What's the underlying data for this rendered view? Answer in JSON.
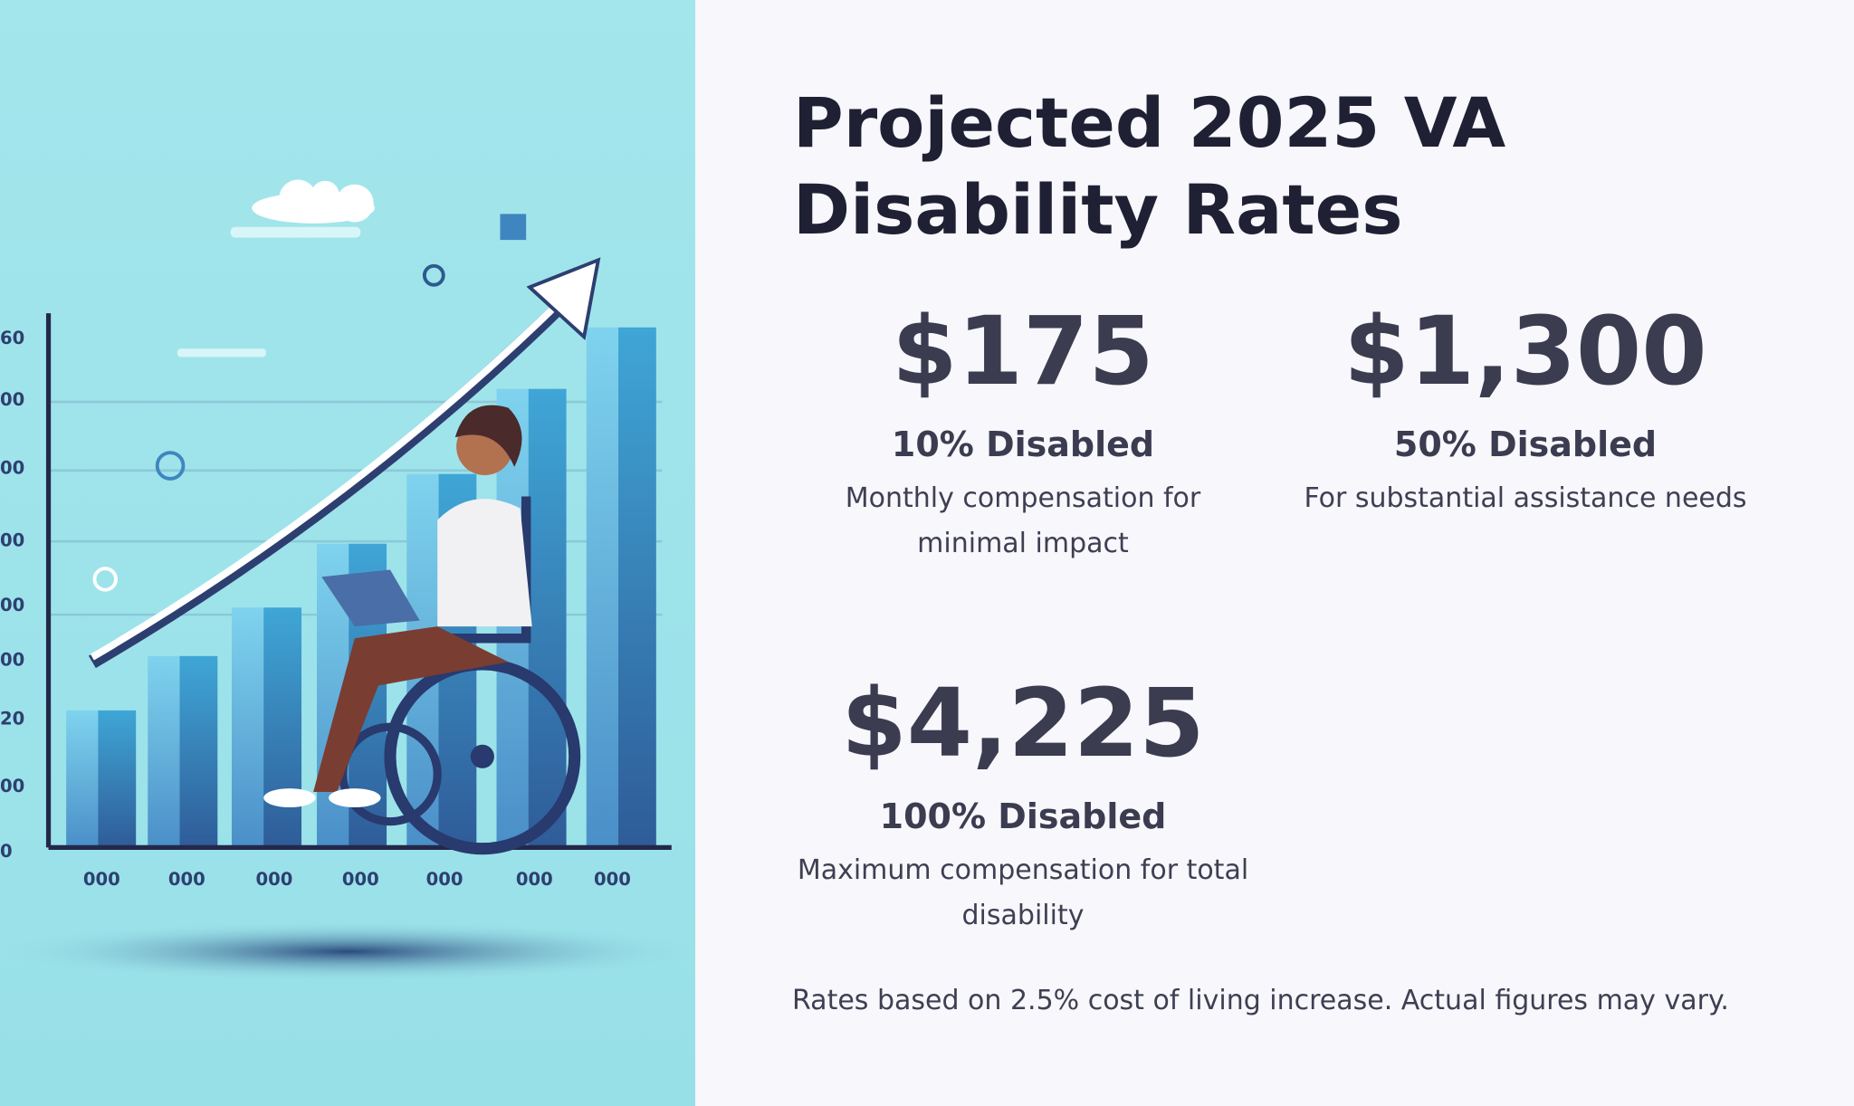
{
  "title": "Projected 2025 VA Disability Rates",
  "stats": [
    {
      "amount": "$175",
      "label": "10% Disabled",
      "description": "Monthly compensation for minimal impact"
    },
    {
      "amount": "$1,300",
      "label": "50% Disabled",
      "description": "For substantial assistance needs"
    },
    {
      "amount": "$4,225",
      "label": "100% Disabled",
      "description": "Maximum compensation for total disability"
    }
  ],
  "footnote": "Rates based on 2.5% cost of living increase. Actual figures may vary.",
  "illustration": {
    "y_labels": [
      "60",
      "00",
      "00",
      "00",
      "00",
      "00",
      "20",
      "00",
      "0"
    ],
    "x_labels": [
      "000",
      "000",
      "000",
      "000",
      "000",
      "000",
      "000"
    ]
  }
}
